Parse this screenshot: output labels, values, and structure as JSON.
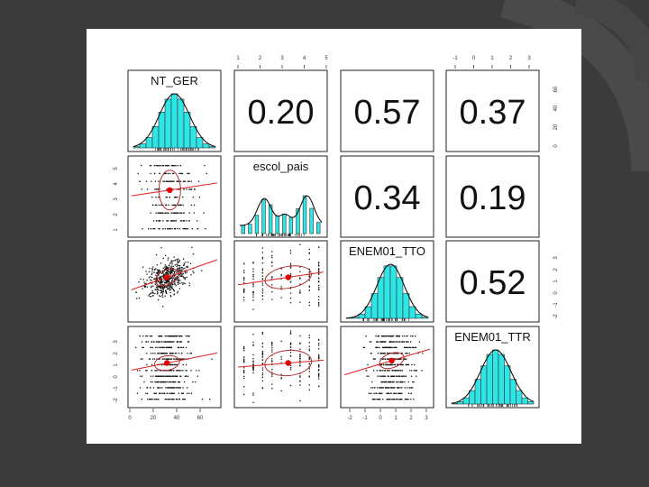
{
  "colors": {
    "slide_background": "#3b3b3b",
    "slide_decor": "#4a4a4a",
    "figure_background": "#ffffff",
    "histogram_fill": "#2ee6e6",
    "density_curve": "#000000",
    "ellipse": "#b03030",
    "loess": "#e02020",
    "center_point": "#e00000"
  },
  "chart_data": {
    "type": "scatter",
    "subtype": "pairs-panels-matrix",
    "variables": [
      "NT_GER",
      "escol_pais",
      "ENEM01_TTO",
      "ENEM01_TTR"
    ],
    "correlations": [
      {
        "row": 0,
        "col": 1,
        "value": "0.20"
      },
      {
        "row": 0,
        "col": 2,
        "value": "0.57"
      },
      {
        "row": 0,
        "col": 3,
        "value": "0.37"
      },
      {
        "row": 1,
        "col": 2,
        "value": "0.34"
      },
      {
        "row": 1,
        "col": 3,
        "value": "0.19"
      },
      {
        "row": 2,
        "col": 3,
        "value": "0.52"
      }
    ],
    "top_axis": {
      "col1_ticks": [
        "1",
        "2",
        "3",
        "4",
        "5"
      ],
      "col3_ticks": [
        "-1",
        "0",
        "1",
        "2",
        "3"
      ]
    },
    "bottom_axis": {
      "col0_ticks": [
        "0",
        "20",
        "40",
        "60"
      ],
      "col2_ticks": [
        "-2",
        "-1",
        "0",
        "1",
        "2",
        "3"
      ]
    },
    "left_axis": {
      "row1_ticks": [
        "1",
        "2",
        "3",
        "4",
        "5"
      ],
      "row3_ticks": [
        "-2",
        "-1",
        "0",
        "1",
        "2",
        "3"
      ]
    },
    "right_axis": {
      "row0_ticks": [
        "0",
        "20",
        "40",
        "60"
      ],
      "row2_ticks": [
        "-2",
        "-1",
        "0",
        "1",
        "2",
        "3"
      ]
    }
  }
}
